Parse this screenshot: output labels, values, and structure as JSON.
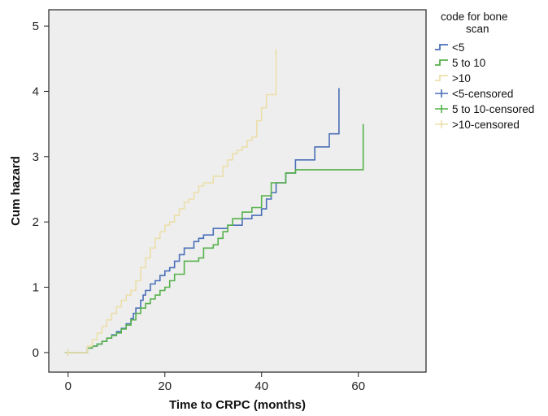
{
  "chart_data": {
    "type": "line",
    "title": "",
    "xlabel": "Time to CRPC (months)",
    "ylabel": "Cum hazard",
    "xlim": [
      -4,
      74
    ],
    "ylim": [
      -0.3,
      5.25
    ],
    "x_ticks": [
      0,
      20,
      40,
      60
    ],
    "y_ticks": [
      0,
      1,
      2,
      3,
      4,
      5
    ],
    "x_tick_labels": [
      "0",
      "20",
      "40",
      "60"
    ],
    "y_tick_labels": [
      "0",
      "1",
      "2",
      "3",
      "4",
      "5"
    ],
    "grid": false,
    "legend": {
      "title": "code for bone scan",
      "title_lines": [
        "code for bone",
        "scan"
      ],
      "placement": "right",
      "entries": [
        "<5",
        "5 to 10",
        ">10",
        "<5-censored",
        "5 to 10-censored",
        ">10-censored"
      ]
    },
    "colors": {
      "plot_background": "#eeeeee",
      "series_1": "#4a6fb8",
      "series_2": "#56b14a",
      "series_3": "#ecdfaa",
      "axis": "#222222"
    },
    "series": [
      {
        "name": "<5",
        "color": "#4a6fb8",
        "x": [
          0,
          4,
          5,
          6,
          7,
          8,
          9,
          10,
          11,
          12,
          13,
          13.5,
          14,
          15,
          15.5,
          16,
          17,
          18,
          19,
          20,
          21,
          22,
          23,
          24,
          26,
          27,
          28,
          30,
          33,
          36,
          38,
          40,
          41,
          42,
          43,
          45,
          47,
          51,
          54,
          56
        ],
        "y": [
          0,
          0.07,
          0.1,
          0.13,
          0.17,
          0.22,
          0.27,
          0.32,
          0.37,
          0.44,
          0.52,
          0.6,
          0.68,
          0.8,
          0.88,
          0.95,
          1.05,
          1.1,
          1.18,
          1.25,
          1.3,
          1.4,
          1.5,
          1.6,
          1.7,
          1.75,
          1.8,
          1.9,
          1.95,
          2.05,
          2.1,
          2.2,
          2.35,
          2.45,
          2.6,
          2.75,
          2.95,
          3.15,
          3.35,
          4.05
        ]
      },
      {
        "name": "5 to 10",
        "color": "#56b14a",
        "x": [
          0,
          4,
          5,
          6,
          7,
          8,
          9,
          10,
          11,
          12,
          13,
          14,
          15,
          16,
          17,
          18,
          19,
          20,
          21,
          22,
          24,
          27,
          28,
          30,
          31,
          32,
          33,
          34,
          36,
          38,
          40,
          42,
          45,
          47,
          61
        ],
        "y": [
          0,
          0.07,
          0.1,
          0.13,
          0.17,
          0.22,
          0.26,
          0.3,
          0.36,
          0.42,
          0.5,
          0.6,
          0.68,
          0.75,
          0.82,
          0.88,
          0.95,
          1.0,
          1.1,
          1.2,
          1.4,
          1.45,
          1.6,
          1.65,
          1.75,
          1.85,
          1.95,
          2.05,
          2.15,
          2.22,
          2.4,
          2.6,
          2.75,
          2.8,
          3.5
        ]
      },
      {
        "name": ">10",
        "color": "#ecdfaa",
        "x": [
          0,
          4,
          5,
          6,
          7,
          8,
          9,
          10,
          11,
          12,
          13,
          14,
          15,
          16,
          17,
          18,
          19,
          20,
          21,
          22,
          23,
          24,
          25,
          26,
          27,
          28,
          30,
          32,
          33,
          34,
          35,
          36,
          37,
          38,
          39,
          40,
          41,
          43
        ],
        "y": [
          0,
          0.1,
          0.2,
          0.3,
          0.4,
          0.5,
          0.6,
          0.7,
          0.8,
          0.88,
          0.95,
          1.1,
          1.3,
          1.45,
          1.6,
          1.75,
          1.85,
          1.95,
          2.0,
          2.1,
          2.2,
          2.3,
          2.35,
          2.45,
          2.55,
          2.6,
          2.7,
          2.85,
          2.95,
          3.05,
          3.1,
          3.15,
          3.25,
          3.3,
          3.55,
          3.75,
          3.95,
          4.65
        ]
      }
    ]
  }
}
